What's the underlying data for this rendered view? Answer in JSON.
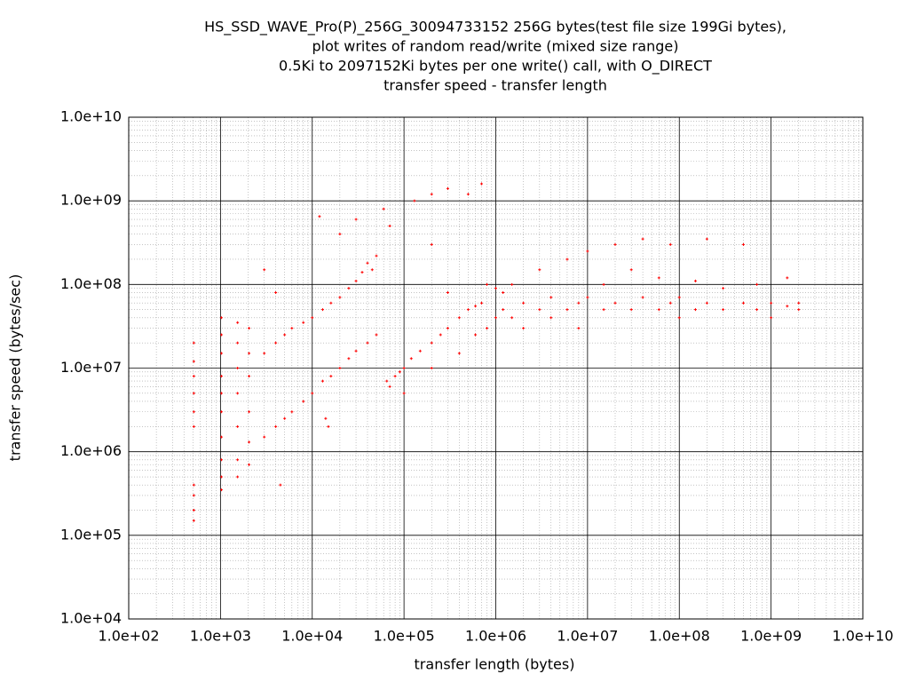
{
  "chart_data": {
    "type": "scatter",
    "title": [
      "HS_SSD_WAVE_Pro(P)_256G_30094733152 256G bytes(test file size 199Gi bytes),",
      "plot writes of random read/write (mixed size range)",
      "0.5Ki to 2097152Ki bytes per one write() call, with O_DIRECT",
      "transfer speed - transfer length"
    ],
    "x_label": "transfer length (bytes)",
    "y_label": "transfer speed (bytes/sec)",
    "xlog": true,
    "ylog": true,
    "grid": true,
    "minor_grid": true,
    "xlim": [
      100,
      10000000000
    ],
    "ylim": [
      10000,
      10000000000
    ],
    "xticks": [
      {
        "value": 100,
        "label": "1.0e+02"
      },
      {
        "value": 1000,
        "label": "1.0e+03"
      },
      {
        "value": 10000,
        "label": "1.0e+04"
      },
      {
        "value": 100000,
        "label": "1.0e+05"
      },
      {
        "value": 1000000,
        "label": "1.0e+06"
      },
      {
        "value": 10000000,
        "label": "1.0e+07"
      },
      {
        "value": 100000000,
        "label": "1.0e+08"
      },
      {
        "value": 1000000000,
        "label": "1.0e+09"
      },
      {
        "value": 10000000000,
        "label": "1.0e+10"
      }
    ],
    "yticks": [
      {
        "value": 10000,
        "label": "1.0e+04"
      },
      {
        "value": 100000,
        "label": "1.0e+05"
      },
      {
        "value": 1000000,
        "label": "1.0e+06"
      },
      {
        "value": 10000000,
        "label": "1.0e+07"
      },
      {
        "value": 100000000,
        "label": "1.0e+08"
      },
      {
        "value": 1000000000,
        "label": "1.0e+09"
      },
      {
        "value": 10000000000,
        "label": "1.0e+10"
      }
    ],
    "series": [
      {
        "color": "#ff0000",
        "x": [
          512,
          512,
          512,
          512,
          512,
          512,
          512,
          512,
          512,
          512,
          1024,
          1024,
          1024,
          1024,
          1024,
          1024,
          1024,
          1024,
          1024,
          1024,
          1536,
          1536,
          1536,
          1536,
          1536,
          1536,
          1536,
          2048,
          2048,
          2048,
          2048,
          2048,
          2048,
          3000.0,
          4000.0,
          5000.0,
          6000.0,
          8000.0,
          10000.0,
          13000.0,
          16000.0,
          20000.0,
          25000.0,
          30000.0,
          40000.0,
          50000.0,
          3000.0,
          4000.0,
          5000.0,
          6000.0,
          8000.0,
          10000.0,
          13000.0,
          16000.0,
          20000.0,
          25000.0,
          30000.0,
          35000.0,
          40000.0,
          50000.0,
          45000.0,
          12000.0,
          20000.0,
          30000.0,
          60000.0,
          70000.0,
          130000.0,
          200000.0,
          300000.0,
          500000.0,
          700000.0,
          200000.0,
          14000.0,
          15000.0,
          3000.0,
          4500.0,
          4000.0,
          65000.0,
          70000.0,
          80000.0,
          90000.0,
          100000.0,
          120000.0,
          150000.0,
          200000.0,
          250000.0,
          300000.0,
          400000.0,
          500000.0,
          600000.0,
          700000.0,
          100000.0,
          200000.0,
          400000.0,
          600000.0,
          800000.0,
          1000000.0,
          800000.0,
          1000000.0,
          300000.0,
          1200000.0,
          1200000.0,
          1500000.0,
          1500000.0,
          2000000.0,
          2000000.0,
          3000000.0,
          3000000.0,
          4000000.0,
          4000000.0,
          6000000.0,
          6000000.0,
          8000000.0,
          8000000.0,
          10000000.0,
          10000000.0,
          15000000.0,
          15000000.0,
          20000000.0,
          20000000.0,
          30000000.0,
          30000000.0,
          40000000.0,
          40000000.0,
          60000000.0,
          60000000.0,
          80000000.0,
          80000000.0,
          100000000.0,
          100000000.0,
          150000000.0,
          150000000.0,
          200000000.0,
          200000000.0,
          300000000.0,
          300000000.0,
          500000000.0,
          500000000.0,
          700000000.0,
          700000000.0,
          1000000000.0,
          1000000000.0,
          1500000000.0,
          1500000000.0,
          2000000000.0,
          2000000000.0
        ],
        "y": [
          150000.0,
          200000.0,
          300000.0,
          400000.0,
          2000000.0,
          3000000.0,
          5000000.0,
          8000000.0,
          12000000.0,
          20000000.0,
          350000.0,
          500000.0,
          800000.0,
          1500000.0,
          3000000.0,
          5000000.0,
          8000000.0,
          15000000.0,
          25000000.0,
          40000000.0,
          500000.0,
          800000.0,
          2000000.0,
          5000000.0,
          10000000.0,
          20000000.0,
          35000000.0,
          700000.0,
          1300000.0,
          3000000.0,
          8000000.0,
          15000000.0,
          30000000.0,
          1500000.0,
          2000000.0,
          2500000.0,
          3000000.0,
          4000000.0,
          5000000.0,
          7000000.0,
          8000000.0,
          10000000.0,
          13000000.0,
          16000000.0,
          20000000.0,
          25000000.0,
          15000000.0,
          20000000.0,
          25000000.0,
          30000000.0,
          35000000.0,
          40000000.0,
          50000000.0,
          60000000.0,
          70000000.0,
          90000000.0,
          110000000.0,
          140000000.0,
          180000000.0,
          220000000.0,
          150000000.0,
          650000000.0,
          400000000.0,
          600000000.0,
          800000000.0,
          500000000.0,
          1000000000.0,
          1200000000.0,
          1400000000.0,
          1200000000.0,
          1600000000.0,
          300000000.0,
          2500000.0,
          2000000.0,
          150000000.0,
          400000.0,
          80000000.0,
          7000000.0,
          6000000.0,
          8000000.0,
          9000000.0,
          10000000.0,
          13000000.0,
          16000000.0,
          20000000.0,
          25000000.0,
          30000000.0,
          40000000.0,
          50000000.0,
          55000000.0,
          60000000.0,
          5000000.0,
          10000000.0,
          15000000.0,
          25000000.0,
          30000000.0,
          40000000.0,
          100000000.0,
          90000000.0,
          80000000.0,
          50000000.0,
          80000000.0,
          40000000.0,
          100000000.0,
          60000000.0,
          30000000.0,
          50000000.0,
          150000000.0,
          70000000.0,
          40000000.0,
          50000000.0,
          200000000.0,
          60000000.0,
          30000000.0,
          70000000.0,
          250000000.0,
          50000000.0,
          100000000.0,
          60000000.0,
          300000000.0,
          50000000.0,
          150000000.0,
          70000000.0,
          350000000.0,
          50000000.0,
          120000000.0,
          60000000.0,
          300000000.0,
          70000000.0,
          40000000.0,
          50000000.0,
          110000000.0,
          60000000.0,
          350000000.0,
          50000000.0,
          90000000.0,
          60000000.0,
          300000000.0,
          50000000.0,
          100000000.0,
          60000000.0,
          40000000.0,
          55000000.0,
          120000000.0,
          60000000.0,
          50000000.0
        ]
      }
    ]
  }
}
